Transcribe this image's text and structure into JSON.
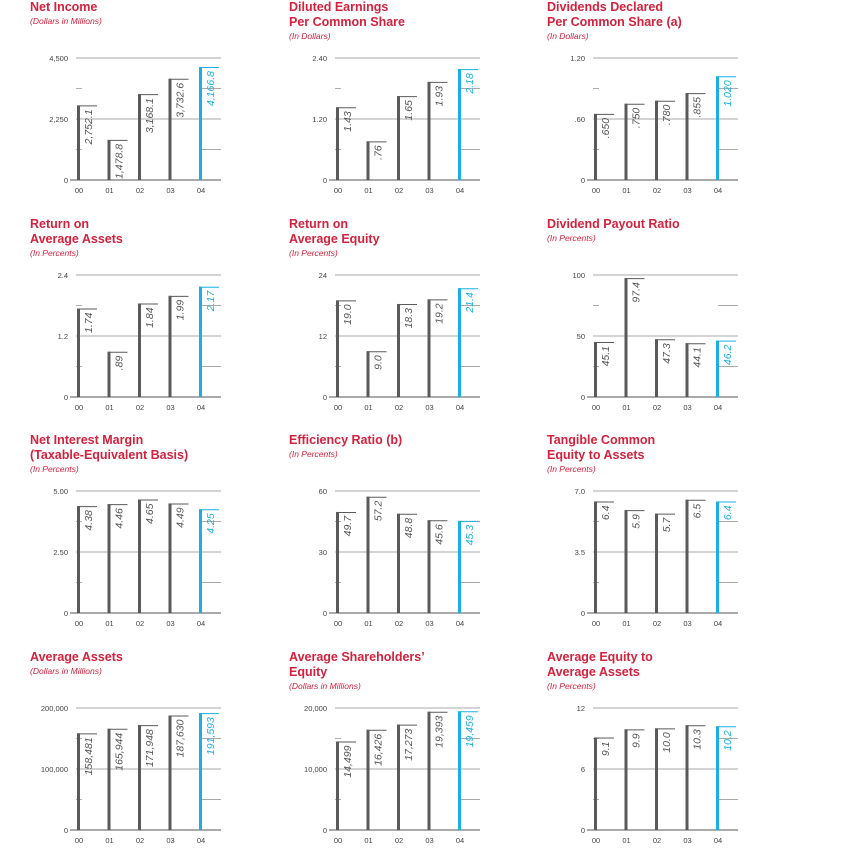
{
  "colors": {
    "title": "#d4213d",
    "bar": "#5a5a5a",
    "highlight": "#1ab0e5",
    "grid": "#8c8c8c"
  },
  "chart_data": [
    {
      "type": "bar",
      "title": "Net Income",
      "title2": "",
      "subtitle": "(Dollars in Millions)",
      "categories": [
        "00",
        "01",
        "02",
        "03",
        "04"
      ],
      "values": [
        2752.1,
        1478.8,
        3168.1,
        3732.6,
        4166.8
      ],
      "labels": [
        "2,752.1",
        "1,478.8",
        "3,168.1",
        "3,732.6",
        "4,166.8"
      ],
      "ylim": [
        0,
        4500
      ],
      "yticks": [
        "0",
        "2,250",
        "4,500"
      ],
      "highlight_index": 4
    },
    {
      "type": "bar",
      "title": "Diluted Earnings",
      "title2": "Per Common Share",
      "subtitle": "(In Dollars)",
      "categories": [
        "00",
        "01",
        "02",
        "03",
        "04"
      ],
      "values": [
        1.43,
        0.76,
        1.65,
        1.93,
        2.18
      ],
      "labels": [
        "1.43",
        ".76",
        "1.65",
        "1.93",
        "2.18"
      ],
      "ylim": [
        0,
        2.4
      ],
      "yticks": [
        "0",
        "1.20",
        "2.40"
      ],
      "highlight_index": 4
    },
    {
      "type": "bar",
      "title": "Dividends Declared",
      "title2": "Per Common Share (a)",
      "subtitle": "(In Dollars)",
      "categories": [
        "00",
        "01",
        "02",
        "03",
        "04"
      ],
      "values": [
        0.65,
        0.75,
        0.78,
        0.855,
        1.02
      ],
      "labels": [
        ".650",
        ".750",
        ".780",
        ".855",
        "1.020"
      ],
      "ylim": [
        0,
        1.2
      ],
      "yticks": [
        "0",
        ".60",
        "1.20"
      ],
      "highlight_index": 4
    },
    {
      "type": "bar",
      "title": "Return on",
      "title2": "Average Assets",
      "subtitle": "(In Percents)",
      "categories": [
        "00",
        "01",
        "02",
        "03",
        "04"
      ],
      "values": [
        1.74,
        0.89,
        1.84,
        1.99,
        2.17
      ],
      "labels": [
        "1.74",
        ".89",
        "1.84",
        "1.99",
        "2.17"
      ],
      "ylim": [
        0,
        2.4
      ],
      "yticks": [
        "0",
        "1.2",
        "2.4"
      ],
      "highlight_index": 4
    },
    {
      "type": "bar",
      "title": "Return on",
      "title2": "Average Equity",
      "subtitle": "(In Percents)",
      "categories": [
        "00",
        "01",
        "02",
        "03",
        "04"
      ],
      "values": [
        19.0,
        9.0,
        18.3,
        19.2,
        21.4
      ],
      "labels": [
        "19.0",
        "9.0",
        "18.3",
        "19.2",
        "21.4"
      ],
      "ylim": [
        0,
        24
      ],
      "yticks": [
        "0",
        "12",
        "24"
      ],
      "highlight_index": 4
    },
    {
      "type": "bar",
      "title": "Dividend Payout Ratio",
      "title2": "",
      "subtitle": "(In Percents)",
      "categories": [
        "00",
        "01",
        "02",
        "03",
        "04"
      ],
      "values": [
        45.1,
        97.4,
        47.3,
        44.1,
        46.2
      ],
      "labels": [
        "45.1",
        "97.4",
        "47.3",
        "44.1",
        "46.2"
      ],
      "ylim": [
        0,
        100
      ],
      "yticks": [
        "0",
        "50",
        "100"
      ],
      "highlight_index": 4
    },
    {
      "type": "bar",
      "title": "Net Interest Margin",
      "title2": "(Taxable-Equivalent Basis)",
      "subtitle": "(In Percents)",
      "categories": [
        "00",
        "01",
        "02",
        "03",
        "04"
      ],
      "values": [
        4.38,
        4.46,
        4.65,
        4.49,
        4.25
      ],
      "labels": [
        "4.38",
        "4.46",
        "4.65",
        "4.49",
        "4.25"
      ],
      "ylim": [
        0,
        5
      ],
      "yticks": [
        "0",
        "2.50",
        "5.00"
      ],
      "highlight_index": 4
    },
    {
      "type": "bar",
      "title": "Efficiency Ratio (b)",
      "title2": "",
      "subtitle": "(In Percents)",
      "categories": [
        "00",
        "01",
        "02",
        "03",
        "04"
      ],
      "values": [
        49.7,
        57.2,
        48.8,
        45.6,
        45.3
      ],
      "labels": [
        "49.7",
        "57.2",
        "48.8",
        "45.6",
        "45.3"
      ],
      "ylim": [
        0,
        60
      ],
      "yticks": [
        "0",
        "30",
        "60"
      ],
      "highlight_index": 4
    },
    {
      "type": "bar",
      "title": "Tangible Common",
      "title2": "Equity to Assets",
      "subtitle": "(In Percents)",
      "categories": [
        "00",
        "01",
        "02",
        "03",
        "04"
      ],
      "values": [
        6.4,
        5.9,
        5.7,
        6.5,
        6.4
      ],
      "labels": [
        "6.4",
        "5.9",
        "5.7",
        "6.5",
        "6.4"
      ],
      "ylim": [
        0,
        7
      ],
      "yticks": [
        "0",
        "3.5",
        "7.0"
      ],
      "highlight_index": 4
    },
    {
      "type": "bar",
      "title": "Average Assets",
      "title2": "",
      "subtitle": "(Dollars in Millions)",
      "categories": [
        "00",
        "01",
        "02",
        "03",
        "04"
      ],
      "values": [
        158481,
        165944,
        171948,
        187630,
        191593
      ],
      "labels": [
        "158,481",
        "165,944",
        "171,948",
        "187,630",
        "191,593"
      ],
      "ylim": [
        0,
        200000
      ],
      "yticks": [
        "0",
        "100,000",
        "200,000"
      ],
      "highlight_index": 4
    },
    {
      "type": "bar",
      "title": "Average Shareholders’",
      "title2": "Equity",
      "subtitle": "(Dollars in Millions)",
      "categories": [
        "00",
        "01",
        "02",
        "03",
        "04"
      ],
      "values": [
        14499,
        16426,
        17273,
        19393,
        19459
      ],
      "labels": [
        "14,499",
        "16,426",
        "17,273",
        "19,393",
        "19,459"
      ],
      "ylim": [
        0,
        20000
      ],
      "yticks": [
        "0",
        "10,000",
        "20,000"
      ],
      "highlight_index": 4
    },
    {
      "type": "bar",
      "title": "Average Equity to",
      "title2": "Average Assets",
      "subtitle": "(In Percents)",
      "categories": [
        "00",
        "01",
        "02",
        "03",
        "04"
      ],
      "values": [
        9.1,
        9.9,
        10.0,
        10.3,
        10.2
      ],
      "labels": [
        "9.1",
        "9.9",
        "10.0",
        "10.3",
        "10.2"
      ],
      "ylim": [
        0,
        12
      ],
      "yticks": [
        "0",
        "6",
        "12"
      ],
      "highlight_index": 4
    }
  ]
}
